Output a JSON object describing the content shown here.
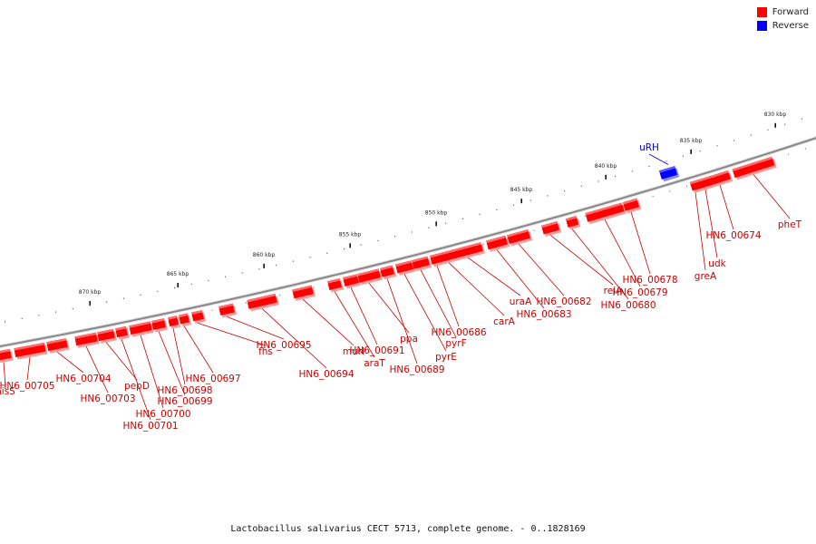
{
  "legend": {
    "items": [
      {
        "label": "Forward",
        "color": "#ff0000"
      },
      {
        "label": "Reverse",
        "color": "#0000ff"
      }
    ]
  },
  "caption": "Lactobacillus salivarius CECT 5713, complete genome. - 0..1828169",
  "scale": {
    "ticks": [
      {
        "label": "830 kbp"
      },
      {
        "label": "835 kbp"
      },
      {
        "label": "840 kbp"
      },
      {
        "label": "845 kbp"
      },
      {
        "label": "850 kbp"
      },
      {
        "label": "855 kbp"
      },
      {
        "label": "860 kbp"
      },
      {
        "label": "865 kbp"
      },
      {
        "label": "870 kbp"
      }
    ]
  },
  "colors": {
    "forward": "#ff0000",
    "reverse": "#0000ff",
    "forward_label": "#cc0000",
    "reverse_label": "#0000cc",
    "backbone": "#888888"
  },
  "genes": [
    {
      "name": "hisS",
      "strand": "forward"
    },
    {
      "name": "HN6_00705",
      "strand": "forward"
    },
    {
      "name": "HN6_00704",
      "strand": "forward"
    },
    {
      "name": "HN6_00703",
      "strand": "forward"
    },
    {
      "name": "pepD",
      "strand": "forward"
    },
    {
      "name": "HN6_00701",
      "strand": "forward"
    },
    {
      "name": "HN6_00700",
      "strand": "forward"
    },
    {
      "name": "HN6_00699",
      "strand": "forward"
    },
    {
      "name": "HN6_00698",
      "strand": "forward"
    },
    {
      "name": "HN6_00697",
      "strand": "forward"
    },
    {
      "name": "fhs",
      "strand": "forward"
    },
    {
      "name": "HN6_00695",
      "strand": "forward"
    },
    {
      "name": "HN6_00694",
      "strand": "forward"
    },
    {
      "name": "murI",
      "strand": "forward"
    },
    {
      "name": "araT",
      "strand": "forward"
    },
    {
      "name": "HN6_00691",
      "strand": "forward"
    },
    {
      "name": "ppa",
      "strand": "forward"
    },
    {
      "name": "HN6_00689",
      "strand": "forward"
    },
    {
      "name": "pyrE",
      "strand": "forward"
    },
    {
      "name": "pyrF",
      "strand": "forward"
    },
    {
      "name": "HN6_00686",
      "strand": "forward"
    },
    {
      "name": "carA",
      "strand": "forward"
    },
    {
      "name": "uraA",
      "strand": "forward"
    },
    {
      "name": "HN6_00683",
      "strand": "forward"
    },
    {
      "name": "HN6_00682",
      "strand": "forward"
    },
    {
      "name": "relA",
      "strand": "forward"
    },
    {
      "name": "HN6_00680",
      "strand": "forward"
    },
    {
      "name": "HN6_00679",
      "strand": "forward"
    },
    {
      "name": "HN6_00678",
      "strand": "forward"
    },
    {
      "name": "uRH",
      "strand": "reverse"
    },
    {
      "name": "greA",
      "strand": "forward"
    },
    {
      "name": "udk",
      "strand": "forward"
    },
    {
      "name": "HN6_00674",
      "strand": "forward"
    },
    {
      "name": "pheT",
      "strand": "forward"
    }
  ]
}
